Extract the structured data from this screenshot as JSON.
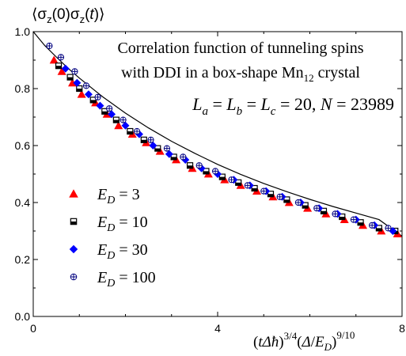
{
  "chart_data": {
    "type": "scatter",
    "title": "Correlation function of tunneling spins with DDI in a box-shape Mn12 crystal",
    "title_lines": [
      "Correlation function of tunneling spins",
      "with DDI in a box-shape Mn",
      "12",
      " crystal"
    ],
    "params": {
      "base": "L",
      "a": "a",
      "b": "b",
      "c": "c",
      "value": "= 20,",
      "N_label": "N",
      "N_value": "= 23989"
    },
    "ylabel": {
      "pre": "⟨σ",
      "s1": "z",
      "mid": "(0)σ",
      "s2": "z",
      "open": "(",
      "t": "t",
      "close": ")⟩"
    },
    "xlabel": {
      "open": "(",
      "t": "t",
      "d1": "Δ",
      "hbar": "ħ",
      "close1": ")",
      "e1": "3/4",
      "open2": "(",
      "d2": "Δ",
      "slash": "/",
      "E": "E",
      "D": "D",
      "close2": ")",
      "e2": "9/10"
    },
    "xlim": [
      0,
      8
    ],
    "ylim": [
      0.0,
      1.0
    ],
    "xticks": [
      "0",
      "4",
      "8"
    ],
    "yticks": [
      "0.0",
      "0.2",
      "0.4",
      "0.6",
      "0.8",
      "1.0"
    ],
    "grid": false,
    "legend_position": "bottom-left",
    "series": [
      {
        "name": "E_D = 3",
        "name_parts": [
          "E",
          "D",
          "= 3"
        ],
        "marker": "triangle",
        "color": "#ff0000",
        "x": [
          0.45,
          0.62,
          0.85,
          1.05,
          1.35,
          1.6,
          1.85,
          2.15,
          2.45,
          2.75,
          3.1,
          3.45,
          3.8,
          4.15,
          4.5,
          4.85,
          5.2,
          5.55,
          5.95,
          6.35,
          6.75,
          7.15,
          7.55,
          7.9
        ],
        "y": [
          0.9,
          0.86,
          0.82,
          0.78,
          0.75,
          0.71,
          0.67,
          0.64,
          0.61,
          0.58,
          0.55,
          0.52,
          0.5,
          0.48,
          0.46,
          0.44,
          0.42,
          0.4,
          0.38,
          0.36,
          0.34,
          0.32,
          0.3,
          0.29
        ]
      },
      {
        "name": "E_D = 10",
        "name_parts": [
          "E",
          "D",
          "= 10"
        ],
        "marker": "half-square",
        "color": "#000000",
        "x": [
          0.55,
          0.8,
          1.0,
          1.3,
          1.55,
          1.8,
          2.1,
          2.4,
          2.7,
          3.05,
          3.4,
          3.75,
          4.1,
          4.45,
          4.8,
          5.15,
          5.5,
          5.9,
          6.3,
          6.7,
          7.1,
          7.5,
          7.85
        ],
        "y": [
          0.88,
          0.84,
          0.8,
          0.76,
          0.72,
          0.69,
          0.65,
          0.62,
          0.59,
          0.56,
          0.53,
          0.51,
          0.49,
          0.47,
          0.45,
          0.43,
          0.41,
          0.39,
          0.37,
          0.35,
          0.33,
          0.31,
          0.3
        ]
      },
      {
        "name": "E_D = 30",
        "name_parts": [
          "E",
          "D",
          "= 30"
        ],
        "marker": "diamond",
        "color": "#0000ff",
        "x": [
          0.7,
          0.95,
          1.2,
          1.45,
          1.7,
          2.0,
          2.3,
          2.6,
          2.95,
          3.3,
          3.65,
          4.0,
          4.35,
          4.7,
          5.05,
          5.4,
          5.8,
          6.2,
          6.6,
          7.0,
          7.4,
          7.8
        ],
        "y": [
          0.87,
          0.82,
          0.78,
          0.74,
          0.71,
          0.67,
          0.64,
          0.6,
          0.57,
          0.55,
          0.52,
          0.5,
          0.48,
          0.46,
          0.44,
          0.42,
          0.4,
          0.38,
          0.36,
          0.34,
          0.32,
          0.3
        ]
      },
      {
        "name": "E_D = 100",
        "name_parts": [
          "E",
          "D",
          "= 100"
        ],
        "marker": "circle-plus",
        "color": "#00007f",
        "x": [
          0.35,
          0.6,
          0.9,
          1.15,
          1.4,
          1.65,
          1.95,
          2.25,
          2.55,
          2.9,
          3.25,
          3.6,
          3.95,
          4.3,
          4.65,
          5.0,
          5.35,
          5.75,
          6.15,
          6.55,
          6.95,
          7.35,
          7.7
        ],
        "y": [
          0.95,
          0.91,
          0.86,
          0.81,
          0.77,
          0.73,
          0.69,
          0.65,
          0.62,
          0.59,
          0.56,
          0.53,
          0.51,
          0.48,
          0.46,
          0.44,
          0.42,
          0.4,
          0.38,
          0.36,
          0.34,
          0.32,
          0.31
        ]
      }
    ],
    "fit_line": {
      "x": [
        0,
        0.25,
        0.5,
        0.75,
        1.0,
        1.5,
        2.0,
        2.5,
        3.0,
        3.5,
        4.0,
        4.5,
        5.0,
        5.5,
        6.0,
        6.5,
        7.0,
        7.5,
        8.0
      ],
      "y": [
        1.0,
        0.951,
        0.911,
        0.872,
        0.837,
        0.772,
        0.714,
        0.662,
        0.615,
        0.573,
        0.534,
        0.499,
        0.467,
        0.438,
        0.411,
        0.386,
        0.363,
        0.34,
        0.282
      ]
    }
  }
}
